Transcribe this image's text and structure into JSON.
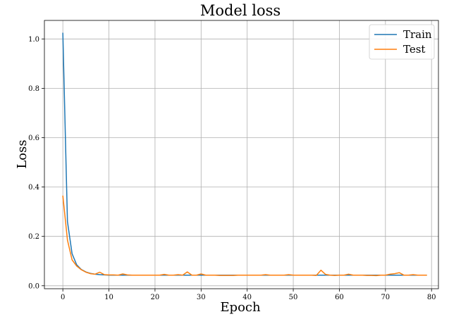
{
  "chart_data": {
    "type": "line",
    "title": "Model loss",
    "xlabel": "Epoch",
    "ylabel": "Loss",
    "xlim": [
      -4,
      81.5
    ],
    "ylim": [
      -0.012,
      1.075
    ],
    "xticks": [
      0,
      10,
      20,
      30,
      40,
      50,
      60,
      70,
      80
    ],
    "yticks": [
      0.0,
      0.2,
      0.4,
      0.6,
      0.8,
      1.0
    ],
    "xtick_labels": [
      "0",
      "10",
      "20",
      "30",
      "40",
      "50",
      "60",
      "70",
      "80"
    ],
    "ytick_labels": [
      "0.0",
      "0.2",
      "0.4",
      "0.6",
      "0.8",
      "1.0"
    ],
    "grid": true,
    "legend_position": "top-right",
    "series": [
      {
        "name": "Train",
        "color": "#1f77b4",
        "x": [
          0,
          1,
          2,
          3,
          4,
          5,
          6,
          7,
          8,
          9,
          10,
          11,
          12,
          13,
          14,
          15,
          16,
          17,
          18,
          19,
          20,
          21,
          22,
          23,
          24,
          25,
          26,
          27,
          28,
          29,
          30,
          31,
          32,
          33,
          34,
          35,
          36,
          37,
          38,
          39,
          40,
          41,
          42,
          43,
          44,
          45,
          46,
          47,
          48,
          49,
          50,
          51,
          52,
          53,
          54,
          55,
          56,
          57,
          58,
          59,
          60,
          61,
          62,
          63,
          64,
          65,
          66,
          67,
          68,
          69,
          70,
          71,
          72,
          73,
          74,
          75,
          76,
          77,
          78,
          79
        ],
        "values": [
          1.025,
          0.26,
          0.13,
          0.085,
          0.066,
          0.056,
          0.05,
          0.047,
          0.045,
          0.044,
          0.043,
          0.043,
          0.043,
          0.043,
          0.043,
          0.043,
          0.043,
          0.043,
          0.043,
          0.043,
          0.043,
          0.043,
          0.043,
          0.043,
          0.043,
          0.043,
          0.043,
          0.043,
          0.043,
          0.043,
          0.043,
          0.043,
          0.043,
          0.043,
          0.043,
          0.043,
          0.043,
          0.043,
          0.043,
          0.043,
          0.043,
          0.043,
          0.043,
          0.043,
          0.043,
          0.043,
          0.043,
          0.043,
          0.043,
          0.043,
          0.043,
          0.043,
          0.043,
          0.043,
          0.043,
          0.043,
          0.043,
          0.043,
          0.043,
          0.043,
          0.043,
          0.043,
          0.043,
          0.043,
          0.043,
          0.043,
          0.043,
          0.043,
          0.043,
          0.043,
          0.043,
          0.043,
          0.043,
          0.043,
          0.043,
          0.043,
          0.043,
          0.043,
          0.043,
          0.043
        ]
      },
      {
        "name": "Test",
        "color": "#ff7f0e",
        "x": [
          0,
          1,
          2,
          3,
          4,
          5,
          6,
          7,
          8,
          9,
          10,
          11,
          12,
          13,
          14,
          15,
          16,
          17,
          18,
          19,
          20,
          21,
          22,
          23,
          24,
          25,
          26,
          27,
          28,
          29,
          30,
          31,
          32,
          33,
          34,
          35,
          36,
          37,
          38,
          39,
          40,
          41,
          42,
          43,
          44,
          45,
          46,
          47,
          48,
          49,
          50,
          51,
          52,
          53,
          54,
          55,
          56,
          57,
          58,
          59,
          60,
          61,
          62,
          63,
          64,
          65,
          66,
          67,
          68,
          69,
          70,
          71,
          72,
          73,
          74,
          75,
          76,
          77,
          78,
          79
        ],
        "values": [
          0.365,
          0.185,
          0.105,
          0.08,
          0.065,
          0.055,
          0.049,
          0.047,
          0.055,
          0.045,
          0.044,
          0.044,
          0.043,
          0.048,
          0.044,
          0.043,
          0.043,
          0.043,
          0.043,
          0.043,
          0.043,
          0.043,
          0.046,
          0.043,
          0.043,
          0.045,
          0.043,
          0.056,
          0.043,
          0.043,
          0.048,
          0.043,
          0.043,
          0.043,
          0.042,
          0.042,
          0.042,
          0.042,
          0.043,
          0.043,
          0.043,
          0.043,
          0.043,
          0.043,
          0.045,
          0.043,
          0.043,
          0.043,
          0.043,
          0.045,
          0.043,
          0.043,
          0.043,
          0.043,
          0.043,
          0.042,
          0.063,
          0.046,
          0.043,
          0.042,
          0.043,
          0.043,
          0.047,
          0.043,
          0.043,
          0.043,
          0.042,
          0.042,
          0.041,
          0.043,
          0.043,
          0.047,
          0.049,
          0.053,
          0.043,
          0.043,
          0.045,
          0.043,
          0.043,
          0.043
        ]
      }
    ]
  }
}
